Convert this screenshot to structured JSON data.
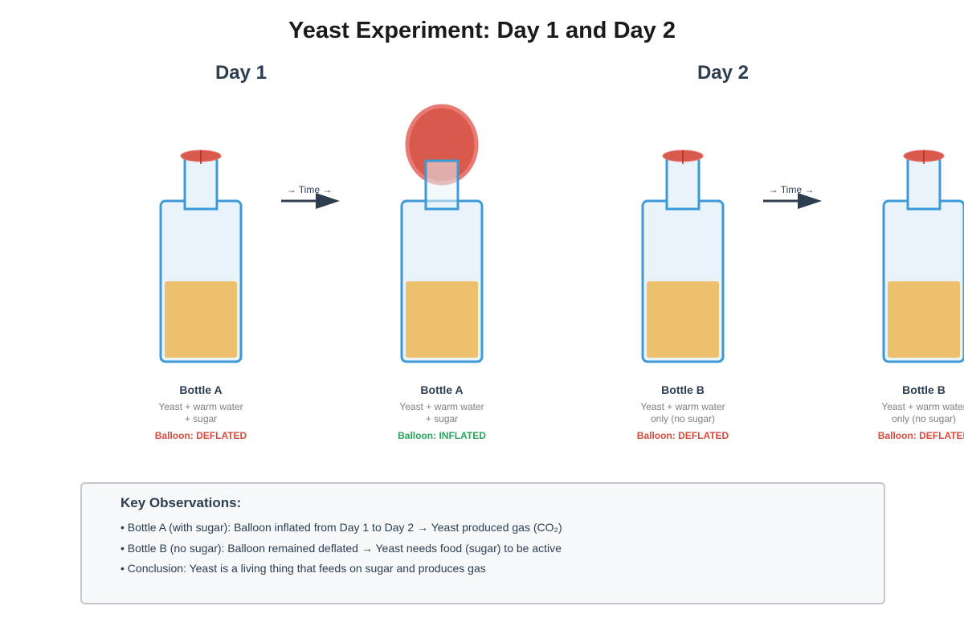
{
  "title": "Yeast Experiment: Day 1 and Day 2",
  "days": [
    "Day 1",
    "Day 2"
  ],
  "time_label": "→ Time →",
  "bottles": [
    {
      "name": "Bottle A",
      "desc1": "Yeast + warm water",
      "desc2": "+ sugar",
      "status": "Balloon: DEFLATED",
      "balloon": "deflated"
    },
    {
      "name": "Bottle A",
      "desc1": "Yeast + warm water",
      "desc2": "+ sugar",
      "status": "Balloon: INFLATED",
      "balloon": "inflated"
    },
    {
      "name": "Bottle B",
      "desc1": "Yeast + warm water",
      "desc2": "only (no sugar)",
      "status": "Balloon: DEFLATED",
      "balloon": "deflated"
    },
    {
      "name": "Bottle B",
      "desc1": "Yeast + warm water",
      "desc2": "only (no sugar)",
      "status": "Balloon: DEFLATED",
      "balloon": "deflated"
    }
  ],
  "observations": {
    "title": "Key Observations:",
    "items": [
      "• Bottle A (with sugar): Balloon inflated from Day 1 to Day 2 → Yeast produced gas (CO₂)",
      "• Bottle B (no sugar): Balloon remained deflated → Yeast needs food (sugar) to be active",
      "• Conclusion: Yeast is a living thing that feeds on sugar and produces gas"
    ]
  },
  "colors": {
    "bottle_outline": "#3d9ad6",
    "bottle_fill": "#e8f3fa",
    "liquid": "#edc06d",
    "balloon": "#d9594c",
    "balloon_edge": "#e77b73",
    "arrow": "#2c3e50",
    "deflated_text": "#d94a3d",
    "inflated_text": "#27a55b"
  }
}
